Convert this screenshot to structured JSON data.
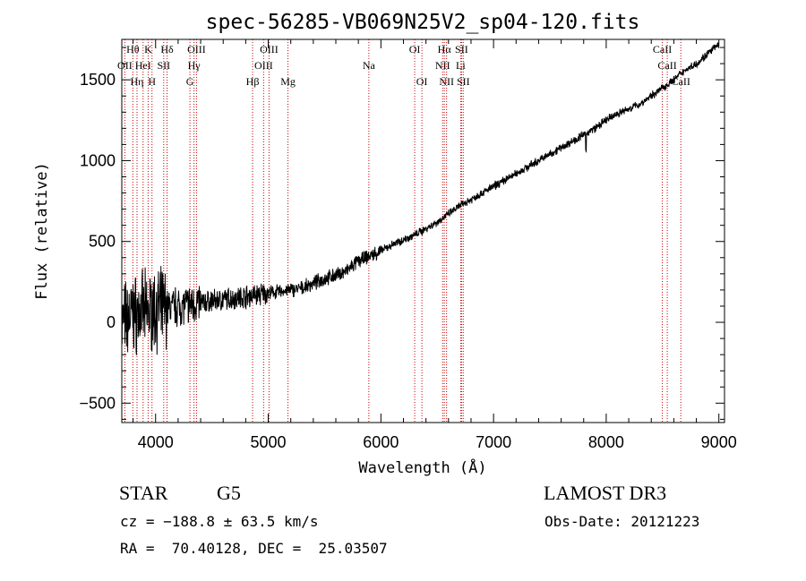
{
  "chart_data": {
    "type": "line",
    "title": "spec-56285-VB069N25V2_sp04-120.fits",
    "xlabel": "Wavelength (Å)",
    "ylabel": "Flux (relative)",
    "xlim": [
      3700,
      9050
    ],
    "ylim": [
      -620,
      1750
    ],
    "xticks": [
      4000,
      5000,
      6000,
      7000,
      8000,
      9000
    ],
    "xtick_labels": [
      "4000",
      "5000",
      "6000",
      "7000",
      "8000",
      "9000"
    ],
    "yticks": [
      -500,
      0,
      500,
      1000,
      1500
    ],
    "ytick_labels": [
      "−500",
      "0",
      "500",
      "1000",
      "1500"
    ],
    "series": [
      {
        "name": "spectrum",
        "anchors_x": [
          3700,
          3800,
          3900,
          4000,
          4100,
          4200,
          4300,
          4400,
          4500,
          4600,
          4700,
          4800,
          4900,
          5000,
          5100,
          5200,
          5300,
          5400,
          5500,
          5600,
          5700,
          5800,
          5900,
          6000,
          6100,
          6200,
          6300,
          6400,
          6500,
          6600,
          6700,
          6800,
          6900,
          7000,
          7100,
          7200,
          7300,
          7400,
          7500,
          7600,
          7700,
          7800,
          7900,
          8000,
          8100,
          8200,
          8300,
          8400,
          8500,
          8600,
          8700,
          8800,
          8900,
          9000
        ],
        "anchors_y": [
          0,
          50,
          60,
          80,
          90,
          100,
          110,
          120,
          130,
          140,
          150,
          160,
          170,
          180,
          190,
          200,
          210,
          240,
          270,
          290,
          320,
          380,
          410,
          440,
          480,
          510,
          540,
          580,
          620,
          670,
          720,
          760,
          800,
          840,
          880,
          920,
          960,
          1000,
          1040,
          1080,
          1120,
          1160,
          1200,
          1250,
          1290,
          1320,
          1350,
          1400,
          1450,
          1500,
          1560,
          1600,
          1660,
          1720
        ]
      }
    ],
    "line_markers": [
      {
        "label": "Hθ",
        "x": 3798,
        "row": 0
      },
      {
        "label": "K",
        "x": 3934,
        "row": 0
      },
      {
        "label": "Hδ",
        "x": 4102,
        "row": 0
      },
      {
        "label": "OIII",
        "x": 4363,
        "row": 0
      },
      {
        "label": "OIII",
        "x": 5007,
        "row": 0
      },
      {
        "label": "OI",
        "x": 6300,
        "row": 0
      },
      {
        "label": "Hα",
        "x": 6563,
        "row": 0
      },
      {
        "label": "SII",
        "x": 6716,
        "row": 0
      },
      {
        "label": "CaII",
        "x": 8498,
        "row": 0
      },
      {
        "label": "OII",
        "x": 3727,
        "row": 1
      },
      {
        "label": "HeI",
        "x": 3889,
        "row": 1
      },
      {
        "label": "SII",
        "x": 4072,
        "row": 1
      },
      {
        "label": "Hγ",
        "x": 4341,
        "row": 1
      },
      {
        "label": "OIII",
        "x": 4959,
        "row": 1
      },
      {
        "label": "Na",
        "x": 5893,
        "row": 1
      },
      {
        "label": "NII",
        "x": 6548,
        "row": 1
      },
      {
        "label": "Li",
        "x": 6708,
        "row": 1
      },
      {
        "label": "CaII",
        "x": 8542,
        "row": 1
      },
      {
        "label": "Hη",
        "x": 3835,
        "row": 2
      },
      {
        "label": "H",
        "x": 3968,
        "row": 2
      },
      {
        "label": "G",
        "x": 4305,
        "row": 2
      },
      {
        "label": "Hβ",
        "x": 4861,
        "row": 2
      },
      {
        "label": "Mg",
        "x": 5175,
        "row": 2
      },
      {
        "label": "OI",
        "x": 6364,
        "row": 2
      },
      {
        "label": "NII",
        "x": 6583,
        "row": 2
      },
      {
        "label": "SII",
        "x": 6731,
        "row": 2
      },
      {
        "label": "CaII",
        "x": 8662,
        "row": 2
      }
    ],
    "colors": {
      "spectrum": "#000000",
      "markers": "#cc0000",
      "axes": "#000000"
    }
  },
  "info": {
    "object_class": "STAR",
    "subclass": "G5",
    "survey": "LAMOST DR3",
    "cz": "cz = −188.8 ± 63.5 km/s",
    "obs_date": "Obs-Date: 20121223",
    "coords": "RA =  70.40128, DEC =  25.03507"
  }
}
